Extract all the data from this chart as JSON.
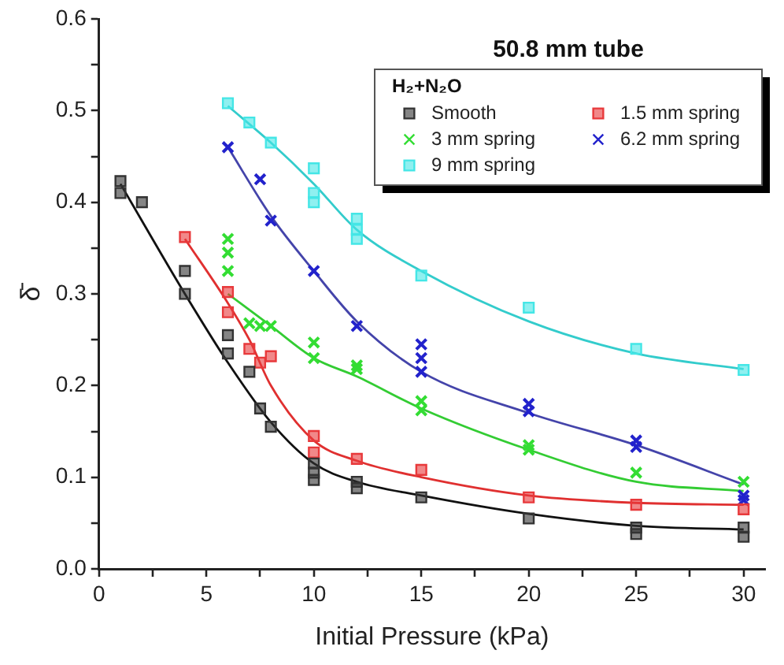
{
  "chart_data": {
    "type": "scatter",
    "title": "50.8 mm tube",
    "legend_title": "H₂+N₂O",
    "xlabel": "Initial Pressure (kPa)",
    "ylabel": "δ̄",
    "xlim": [
      0,
      31
    ],
    "ylim": [
      0,
      0.6
    ],
    "xticks": [
      0,
      {
        "value": 2.5,
        "label": null
      },
      5,
      {
        "value": 7.5,
        "label": null
      },
      10,
      {
        "value": 12.5,
        "label": null
      },
      15,
      {
        "value": 17.5,
        "label": null
      },
      20,
      {
        "value": 22.5,
        "label": null
      },
      25,
      {
        "value": 27.5,
        "label": null
      },
      30
    ],
    "yticks": [
      {
        "value": 0,
        "label": "0.0"
      },
      {
        "value": 0.05,
        "label": null
      },
      0.1,
      {
        "value": 0.15,
        "label": null
      },
      0.2,
      {
        "value": 0.25,
        "label": null
      },
      0.3,
      {
        "value": 0.35,
        "label": null
      },
      0.4,
      {
        "value": 0.45,
        "label": null
      },
      0.5,
      {
        "value": 0.55,
        "label": null
      },
      0.6
    ],
    "grid": false,
    "legend": "top right",
    "series": [
      {
        "name": "Smooth",
        "type": "scatter",
        "marker": "square",
        "color": "#333333",
        "x": [
          1,
          1,
          2,
          4,
          4,
          6,
          6,
          7,
          7.5,
          8,
          10,
          10,
          10,
          12,
          12,
          15,
          20,
          25,
          25,
          30,
          30
        ],
        "values": [
          0.423,
          0.41,
          0.4,
          0.325,
          0.3,
          0.255,
          0.235,
          0.215,
          0.175,
          0.155,
          0.115,
          0.105,
          0.097,
          0.095,
          0.088,
          0.078,
          0.055,
          0.045,
          0.038,
          0.045,
          0.035
        ]
      },
      {
        "name": "1.5 mm spring",
        "type": "scatter",
        "marker": "square",
        "color": "#e8393b",
        "x": [
          4,
          6,
          6,
          7,
          7.5,
          8,
          10,
          10,
          12,
          15,
          20,
          25,
          30
        ],
        "values": [
          0.362,
          0.302,
          0.28,
          0.24,
          0.225,
          0.232,
          0.145,
          0.127,
          0.12,
          0.108,
          0.078,
          0.07,
          0.065
        ]
      },
      {
        "name": "3 mm spring",
        "type": "scatter",
        "marker": "cross",
        "color": "#33dd33",
        "x": [
          6,
          6,
          6,
          7,
          7.5,
          8,
          10,
          10,
          12,
          12,
          15,
          15,
          20,
          20,
          25,
          30
        ],
        "values": [
          0.36,
          0.345,
          0.325,
          0.268,
          0.265,
          0.265,
          0.247,
          0.23,
          0.222,
          0.218,
          0.183,
          0.173,
          0.135,
          0.13,
          0.105,
          0.095
        ]
      },
      {
        "name": "6.2 mm spring",
        "type": "scatter",
        "marker": "cross",
        "color": "#2222cc",
        "x": [
          6,
          7.5,
          8,
          10,
          12,
          15,
          15,
          15,
          20,
          20,
          25,
          25,
          30,
          30
        ],
        "values": [
          0.46,
          0.425,
          0.38,
          0.325,
          0.265,
          0.245,
          0.23,
          0.215,
          0.18,
          0.172,
          0.14,
          0.133,
          0.08,
          0.075
        ]
      },
      {
        "name": "9 mm spring",
        "type": "scatter",
        "marker": "square",
        "color": "#44e6e6",
        "x": [
          6,
          7,
          8,
          10,
          10,
          10,
          12,
          12,
          12,
          15,
          20,
          25,
          30
        ],
        "values": [
          0.508,
          0.487,
          0.465,
          0.437,
          0.41,
          0.4,
          0.382,
          0.37,
          0.36,
          0.32,
          0.285,
          0.24,
          0.217
        ]
      },
      {
        "type": "line",
        "marker": "none",
        "color": "#111111",
        "x": [
          1,
          4,
          6,
          8,
          10,
          12,
          15,
          20,
          25,
          30
        ],
        "values": [
          0.42,
          0.3,
          0.225,
          0.16,
          0.115,
          0.095,
          0.08,
          0.06,
          0.047,
          0.043
        ]
      },
      {
        "type": "line",
        "marker": "none",
        "color": "#e03030",
        "x": [
          4,
          6,
          7,
          8,
          10,
          12,
          15,
          20,
          25,
          30
        ],
        "values": [
          0.36,
          0.29,
          0.25,
          0.2,
          0.14,
          0.118,
          0.1,
          0.08,
          0.072,
          0.07
        ]
      },
      {
        "type": "line",
        "marker": "none",
        "color": "#33cc33",
        "x": [
          6,
          8,
          10,
          12,
          15,
          20,
          25,
          30
        ],
        "values": [
          0.3,
          0.265,
          0.23,
          0.21,
          0.175,
          0.13,
          0.095,
          0.085
        ]
      },
      {
        "type": "line",
        "marker": "none",
        "color": "#4444aa",
        "x": [
          6,
          8,
          10,
          12,
          15,
          20,
          25,
          30
        ],
        "values": [
          0.46,
          0.385,
          0.325,
          0.27,
          0.215,
          0.17,
          0.135,
          0.092
        ]
      },
      {
        "type": "line",
        "marker": "none",
        "color": "#33cccc",
        "x": [
          6,
          8,
          10,
          12,
          15,
          20,
          25,
          30
        ],
        "values": [
          0.505,
          0.465,
          0.42,
          0.37,
          0.325,
          0.27,
          0.235,
          0.218
        ]
      }
    ]
  }
}
